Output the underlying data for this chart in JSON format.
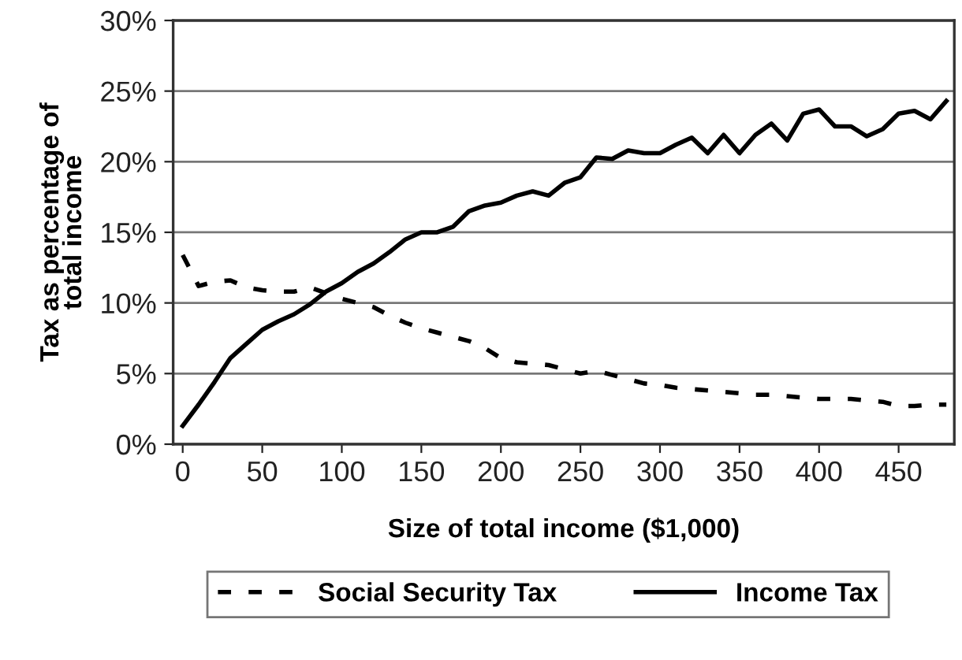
{
  "chart_data": {
    "type": "line",
    "xlabel": "Size of total income ($1,000)",
    "ylabel": "Tax as percentage of\ntotal income",
    "x": [
      0,
      10,
      20,
      30,
      40,
      50,
      60,
      70,
      80,
      90,
      100,
      110,
      120,
      130,
      140,
      150,
      160,
      170,
      180,
      190,
      200,
      210,
      220,
      230,
      240,
      250,
      260,
      270,
      280,
      290,
      300,
      310,
      320,
      330,
      340,
      350,
      360,
      370,
      380,
      390,
      400,
      410,
      420,
      430,
      440,
      450,
      460,
      470,
      480
    ],
    "series": [
      {
        "name": "Social Security Tax",
        "color": "#000000",
        "line_style": "dashed",
        "values": [
          13.4,
          11.2,
          11.5,
          11.6,
          11.1,
          10.9,
          10.8,
          10.8,
          11.1,
          10.7,
          10.3,
          10.0,
          9.7,
          9.1,
          8.6,
          8.2,
          7.9,
          7.6,
          7.3,
          6.8,
          6.1,
          5.8,
          5.7,
          5.6,
          5.3,
          5.0,
          5.2,
          4.9,
          4.6,
          4.3,
          4.2,
          4.0,
          3.9,
          3.8,
          3.7,
          3.6,
          3.5,
          3.5,
          3.4,
          3.3,
          3.2,
          3.2,
          3.2,
          3.1,
          3.0,
          2.7,
          2.7,
          2.8,
          2.8
        ]
      },
      {
        "name": "Income Tax",
        "color": "#000000",
        "line_style": "solid",
        "values": [
          1.3,
          2.8,
          4.4,
          6.1,
          7.1,
          8.1,
          8.7,
          9.2,
          9.9,
          10.8,
          11.4,
          12.2,
          12.8,
          13.6,
          14.5,
          15.0,
          15.0,
          15.4,
          16.5,
          16.9,
          17.1,
          17.6,
          17.9,
          17.6,
          18.5,
          18.9,
          20.3,
          20.2,
          20.8,
          20.6,
          20.6,
          21.2,
          21.7,
          20.6,
          21.9,
          20.6,
          21.9,
          22.7,
          21.5,
          23.4,
          23.7,
          22.5,
          22.5,
          21.8,
          22.3,
          23.4,
          23.6,
          23.0,
          24.3
        ]
      }
    ],
    "xlim": [
      -6,
      485
    ],
    "xticks": [
      0,
      50,
      100,
      150,
      200,
      250,
      300,
      350,
      400,
      450
    ],
    "ylim": [
      0,
      30
    ],
    "yticks": [
      {
        "value": 0,
        "label": "0%"
      },
      {
        "value": 5,
        "label": "5%"
      },
      {
        "value": 10,
        "label": "10%"
      },
      {
        "value": 15,
        "label": "15%"
      },
      {
        "value": 20,
        "label": "20%"
      },
      {
        "value": 25,
        "label": "25%"
      },
      {
        "value": 30,
        "label": "30%"
      }
    ],
    "grid": "y",
    "legend": "bottom",
    "marker": "none"
  }
}
